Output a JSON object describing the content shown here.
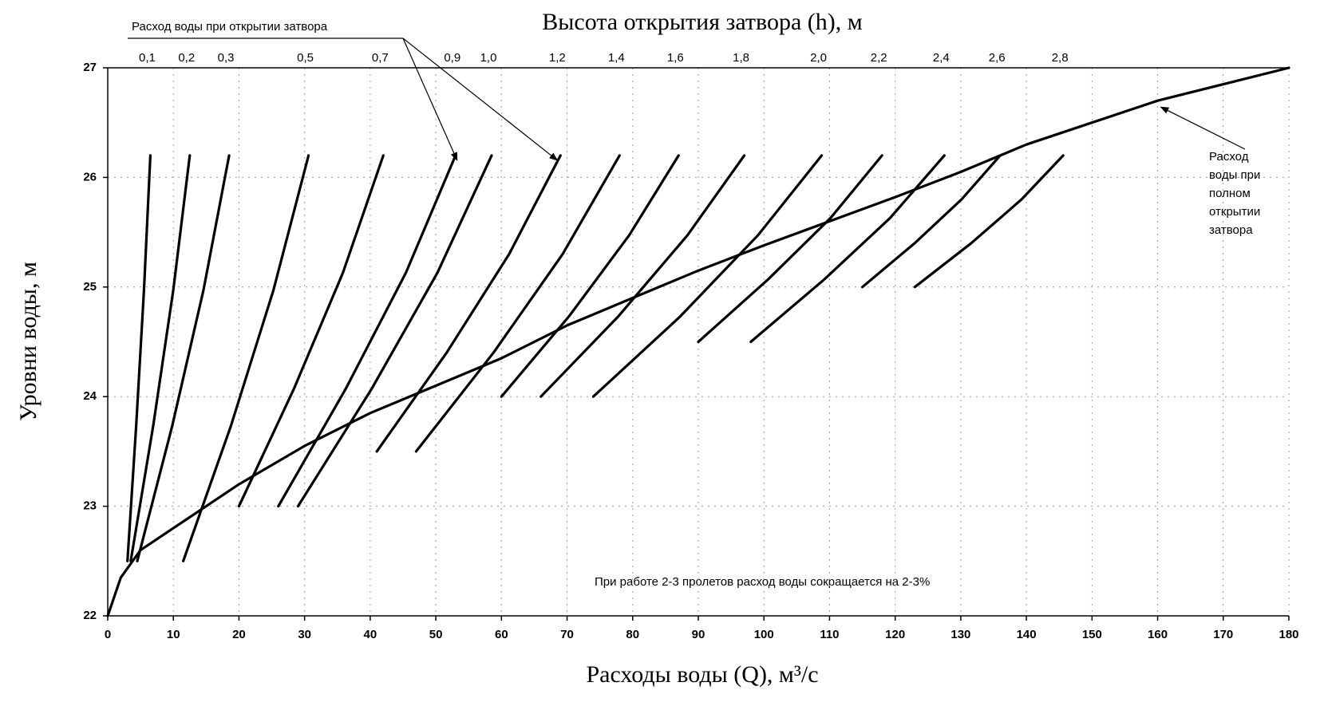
{
  "chart_data": {
    "type": "line",
    "title": "Высота открытия затвора (h), м",
    "x_label": "Расходы  воды (Q), м³/с",
    "y_label": "Уровни воды, м",
    "xlim": [
      0,
      180
    ],
    "ylim": [
      22,
      27
    ],
    "xticks": [
      0,
      10,
      20,
      30,
      40,
      50,
      60,
      70,
      80,
      90,
      100,
      110,
      120,
      130,
      140,
      150,
      160,
      170,
      180
    ],
    "yticks": [
      22,
      23,
      24,
      25,
      26,
      27
    ],
    "grid": true,
    "annotations": {
      "gate_opening": "Расход воды при открытии затвора",
      "full_opening": [
        "Расход",
        "воды при",
        "полном",
        "открытии",
        "затвора"
      ],
      "note": "При работе 2-3 пролетов расход воды сокращается на 2-3%"
    },
    "full_curve": {
      "color": "#000000",
      "x": [
        0,
        2,
        5,
        10,
        15,
        20,
        30,
        40,
        50,
        60,
        70,
        80,
        90,
        100,
        110,
        120,
        130,
        140,
        150,
        160,
        180
      ],
      "values": [
        22,
        22.35,
        22.6,
        22.8,
        23,
        23.2,
        23.55,
        23.85,
        24.1,
        24.35,
        24.65,
        24.9,
        25.15,
        25.38,
        25.6,
        25.82,
        26.05,
        26.3,
        26.5,
        26.7,
        27
      ]
    },
    "series": [
      {
        "name": "0,1",
        "color": "#000000",
        "x": [
          3,
          4.33,
          5.52,
          6.5
        ],
        "values": [
          22.5,
          23.73,
          24.97,
          26.2
        ]
      },
      {
        "name": "0,2",
        "color": "#000000",
        "x": [
          3.5,
          6.92,
          9.98,
          12.5
        ],
        "values": [
          22.5,
          23.73,
          24.97,
          26.2
        ]
      },
      {
        "name": "0,3",
        "color": "#000000",
        "x": [
          4.5,
          9.82,
          14.58,
          18.5
        ],
        "values": [
          22.5,
          23.73,
          24.97,
          26.2
        ]
      },
      {
        "name": "0,5",
        "color": "#000000",
        "x": [
          11.5,
          18.76,
          25.25,
          30.6
        ],
        "values": [
          22.5,
          23.73,
          24.97,
          26.2
        ]
      },
      {
        "name": "0,7",
        "color": "#000000",
        "x": [
          20,
          28.36,
          35.84,
          42
        ],
        "values": [
          23,
          24.07,
          25.13,
          26.2
        ]
      },
      {
        "name": "0,9",
        "color": "#000000",
        "x": [
          26,
          36.26,
          45.44,
          53
        ],
        "values": [
          23,
          24.07,
          25.13,
          26.2
        ]
      },
      {
        "name": "1,0",
        "color": "#000000",
        "x": [
          29,
          40.21,
          50.24,
          58.5
        ],
        "values": [
          23,
          24.07,
          25.13,
          26.2
        ]
      },
      {
        "name": "1,2",
        "color": "#000000",
        "x": [
          41,
          51.64,
          61.16,
          69
        ],
        "values": [
          23.5,
          24.4,
          25.3,
          26.2
        ]
      },
      {
        "name": "1,4",
        "color": "#000000",
        "x": [
          47,
          58.78,
          69.32,
          78
        ],
        "values": [
          23.5,
          24.4,
          25.3,
          26.2
        ]
      },
      {
        "name": "1,6",
        "color": "#000000",
        "x": [
          60,
          70.26,
          79.44,
          87
        ],
        "values": [
          24,
          24.73,
          25.47,
          26.2
        ]
      },
      {
        "name": "1,8",
        "color": "#000000",
        "x": [
          66,
          77.78,
          88.32,
          97
        ],
        "values": [
          24,
          24.73,
          25.47,
          26.2
        ]
      },
      {
        "name": "2,0",
        "color": "#000000",
        "x": [
          74,
          87.22,
          99.06,
          108.8
        ],
        "values": [
          24,
          24.73,
          25.47,
          26.2
        ]
      },
      {
        "name": "2,2",
        "color": "#000000",
        "x": [
          90,
          100.64,
          110.16,
          118
        ],
        "values": [
          24.5,
          25.07,
          25.63,
          26.2
        ]
      },
      {
        "name": "2,4",
        "color": "#000000",
        "x": [
          98,
          109.21,
          119.24,
          127.5
        ],
        "values": [
          24.5,
          25.07,
          25.63,
          26.2
        ]
      },
      {
        "name": "2,6",
        "color": "#000000",
        "x": [
          115,
          122.98,
          130.12,
          136
        ],
        "values": [
          25,
          25.4,
          25.8,
          26.2
        ]
      },
      {
        "name": "2,8",
        "color": "#000000",
        "x": [
          123,
          131.59,
          139.27,
          145.6
        ],
        "values": [
          25,
          25.4,
          25.8,
          26.2
        ]
      }
    ]
  }
}
